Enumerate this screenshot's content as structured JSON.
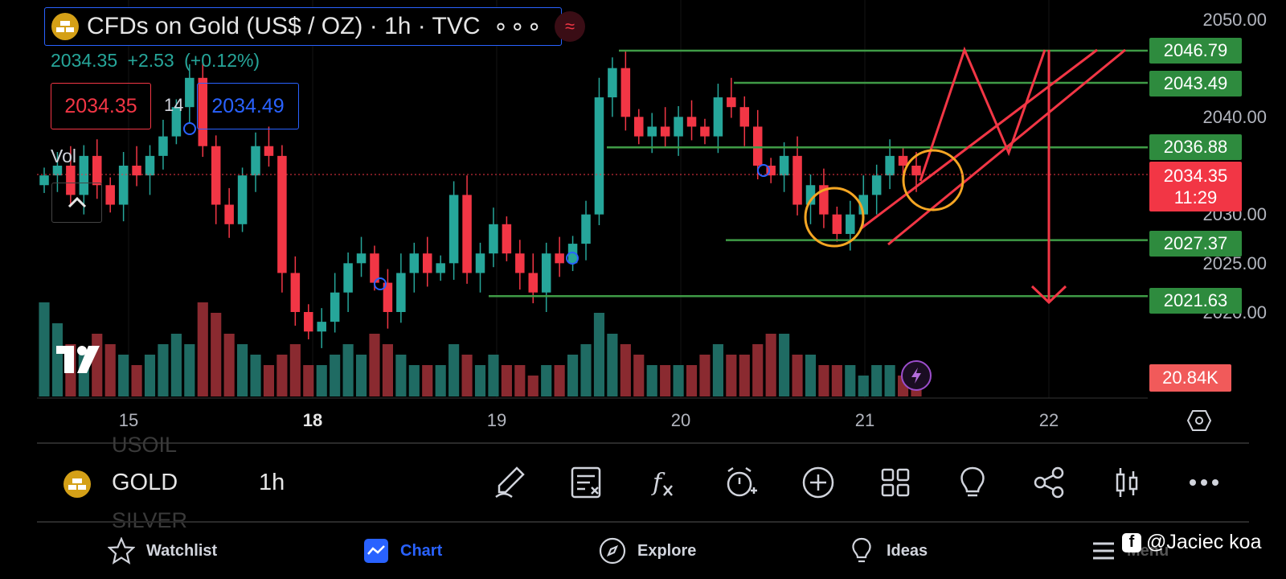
{
  "header": {
    "title": "CFDs on Gold (US$ / OZ) · 1h · TVC",
    "more_label": "∘∘∘",
    "last_price": "2034.35",
    "change": "+2.53",
    "change_pct": "(+0.12%)",
    "sell_price": "2034.35",
    "spread": "14",
    "buy_price": "2034.49",
    "volume_label": "Vol"
  },
  "price_axis": {
    "labels": [
      "2050.00",
      "2040.00",
      "2030.00",
      "2025.00",
      "2020.00"
    ],
    "levels": [
      "2046.79",
      "2043.49",
      "2036.88",
      "2027.37",
      "2021.63"
    ],
    "current_price": "2034.35",
    "countdown": "11:29",
    "volume_value": "20.84K"
  },
  "time_axis": {
    "labels": [
      "15",
      "18",
      "19",
      "20",
      "21",
      "22"
    ],
    "bold_index": 1
  },
  "toolbar": {
    "symbol": "GOLD",
    "symbol_prev": "USOIL",
    "symbol_next": "SILVER",
    "timeframe": "1h",
    "tools": [
      "pencil-icon",
      "notes-icon",
      "indicators-icon",
      "alert-icon",
      "add-icon",
      "layout-icon",
      "ideas-bulb-icon",
      "share-icon",
      "chart-type-icon",
      "more-icon"
    ]
  },
  "bottom_nav": {
    "items": [
      {
        "label": "Watchlist",
        "icon": "star-icon",
        "active": false
      },
      {
        "label": "Chart",
        "icon": "chart-icon",
        "active": true
      },
      {
        "label": "Explore",
        "icon": "compass-icon",
        "active": false
      },
      {
        "label": "Ideas",
        "icon": "bulb-icon",
        "active": false
      },
      {
        "label": "Menu",
        "icon": "menu-icon",
        "active": false
      }
    ]
  },
  "watermark": "@Jaciec koa",
  "colors": {
    "up": "#26a69a",
    "down": "#f23645",
    "level_line": "#3f9b46",
    "annotation": "#f23645",
    "circle": "#f5a623",
    "accent": "#2962ff"
  },
  "chart_data": {
    "type": "candlestick",
    "symbol": "CFDs on Gold (US$ / OZ)",
    "interval": "1h",
    "x_ticks": [
      "15",
      "18",
      "19",
      "20",
      "21",
      "22"
    ],
    "y_ticks": [
      2020,
      2025,
      2030,
      2040,
      2050
    ],
    "ylim": [
      2019,
      2051
    ],
    "horizontal_levels": [
      2046.79,
      2043.49,
      2036.88,
      2027.37,
      2021.63
    ],
    "current_price": 2034.35,
    "close_series": [
      2034,
      2035,
      2032,
      2036,
      2033,
      2031,
      2035,
      2034,
      2036,
      2038,
      2041,
      2044,
      2037,
      2031,
      2029,
      2034,
      2037,
      2036,
      2024,
      2020,
      2018,
      2019,
      2022,
      2025,
      2026,
      2023,
      2020,
      2024,
      2026,
      2024,
      2025,
      2032,
      2024,
      2026,
      2029,
      2026,
      2024,
      2022,
      2026,
      2025,
      2027,
      2030,
      2042,
      2045,
      2040,
      2038,
      2039,
      2038,
      2040,
      2039,
      2038,
      2042,
      2041,
      2039,
      2035,
      2034,
      2036,
      2031,
      2033,
      2030,
      2028,
      2030,
      2032,
      2034,
      2036,
      2035,
      2034
    ],
    "volume_series": [
      0.9,
      0.7,
      0.5,
      0.4,
      0.6,
      0.5,
      0.4,
      0.3,
      0.4,
      0.5,
      0.6,
      0.5,
      0.9,
      0.8,
      0.6,
      0.5,
      0.4,
      0.3,
      0.4,
      0.5,
      0.3,
      0.3,
      0.4,
      0.5,
      0.4,
      0.6,
      0.5,
      0.4,
      0.3,
      0.3,
      0.3,
      0.5,
      0.4,
      0.3,
      0.4,
      0.3,
      0.3,
      0.2,
      0.3,
      0.3,
      0.4,
      0.5,
      0.8,
      0.6,
      0.5,
      0.4,
      0.3,
      0.3,
      0.3,
      0.3,
      0.4,
      0.5,
      0.4,
      0.4,
      0.5,
      0.6,
      0.6,
      0.4,
      0.4,
      0.3,
      0.3,
      0.3,
      0.2,
      0.3,
      0.3,
      0.2,
      0.2
    ]
  }
}
